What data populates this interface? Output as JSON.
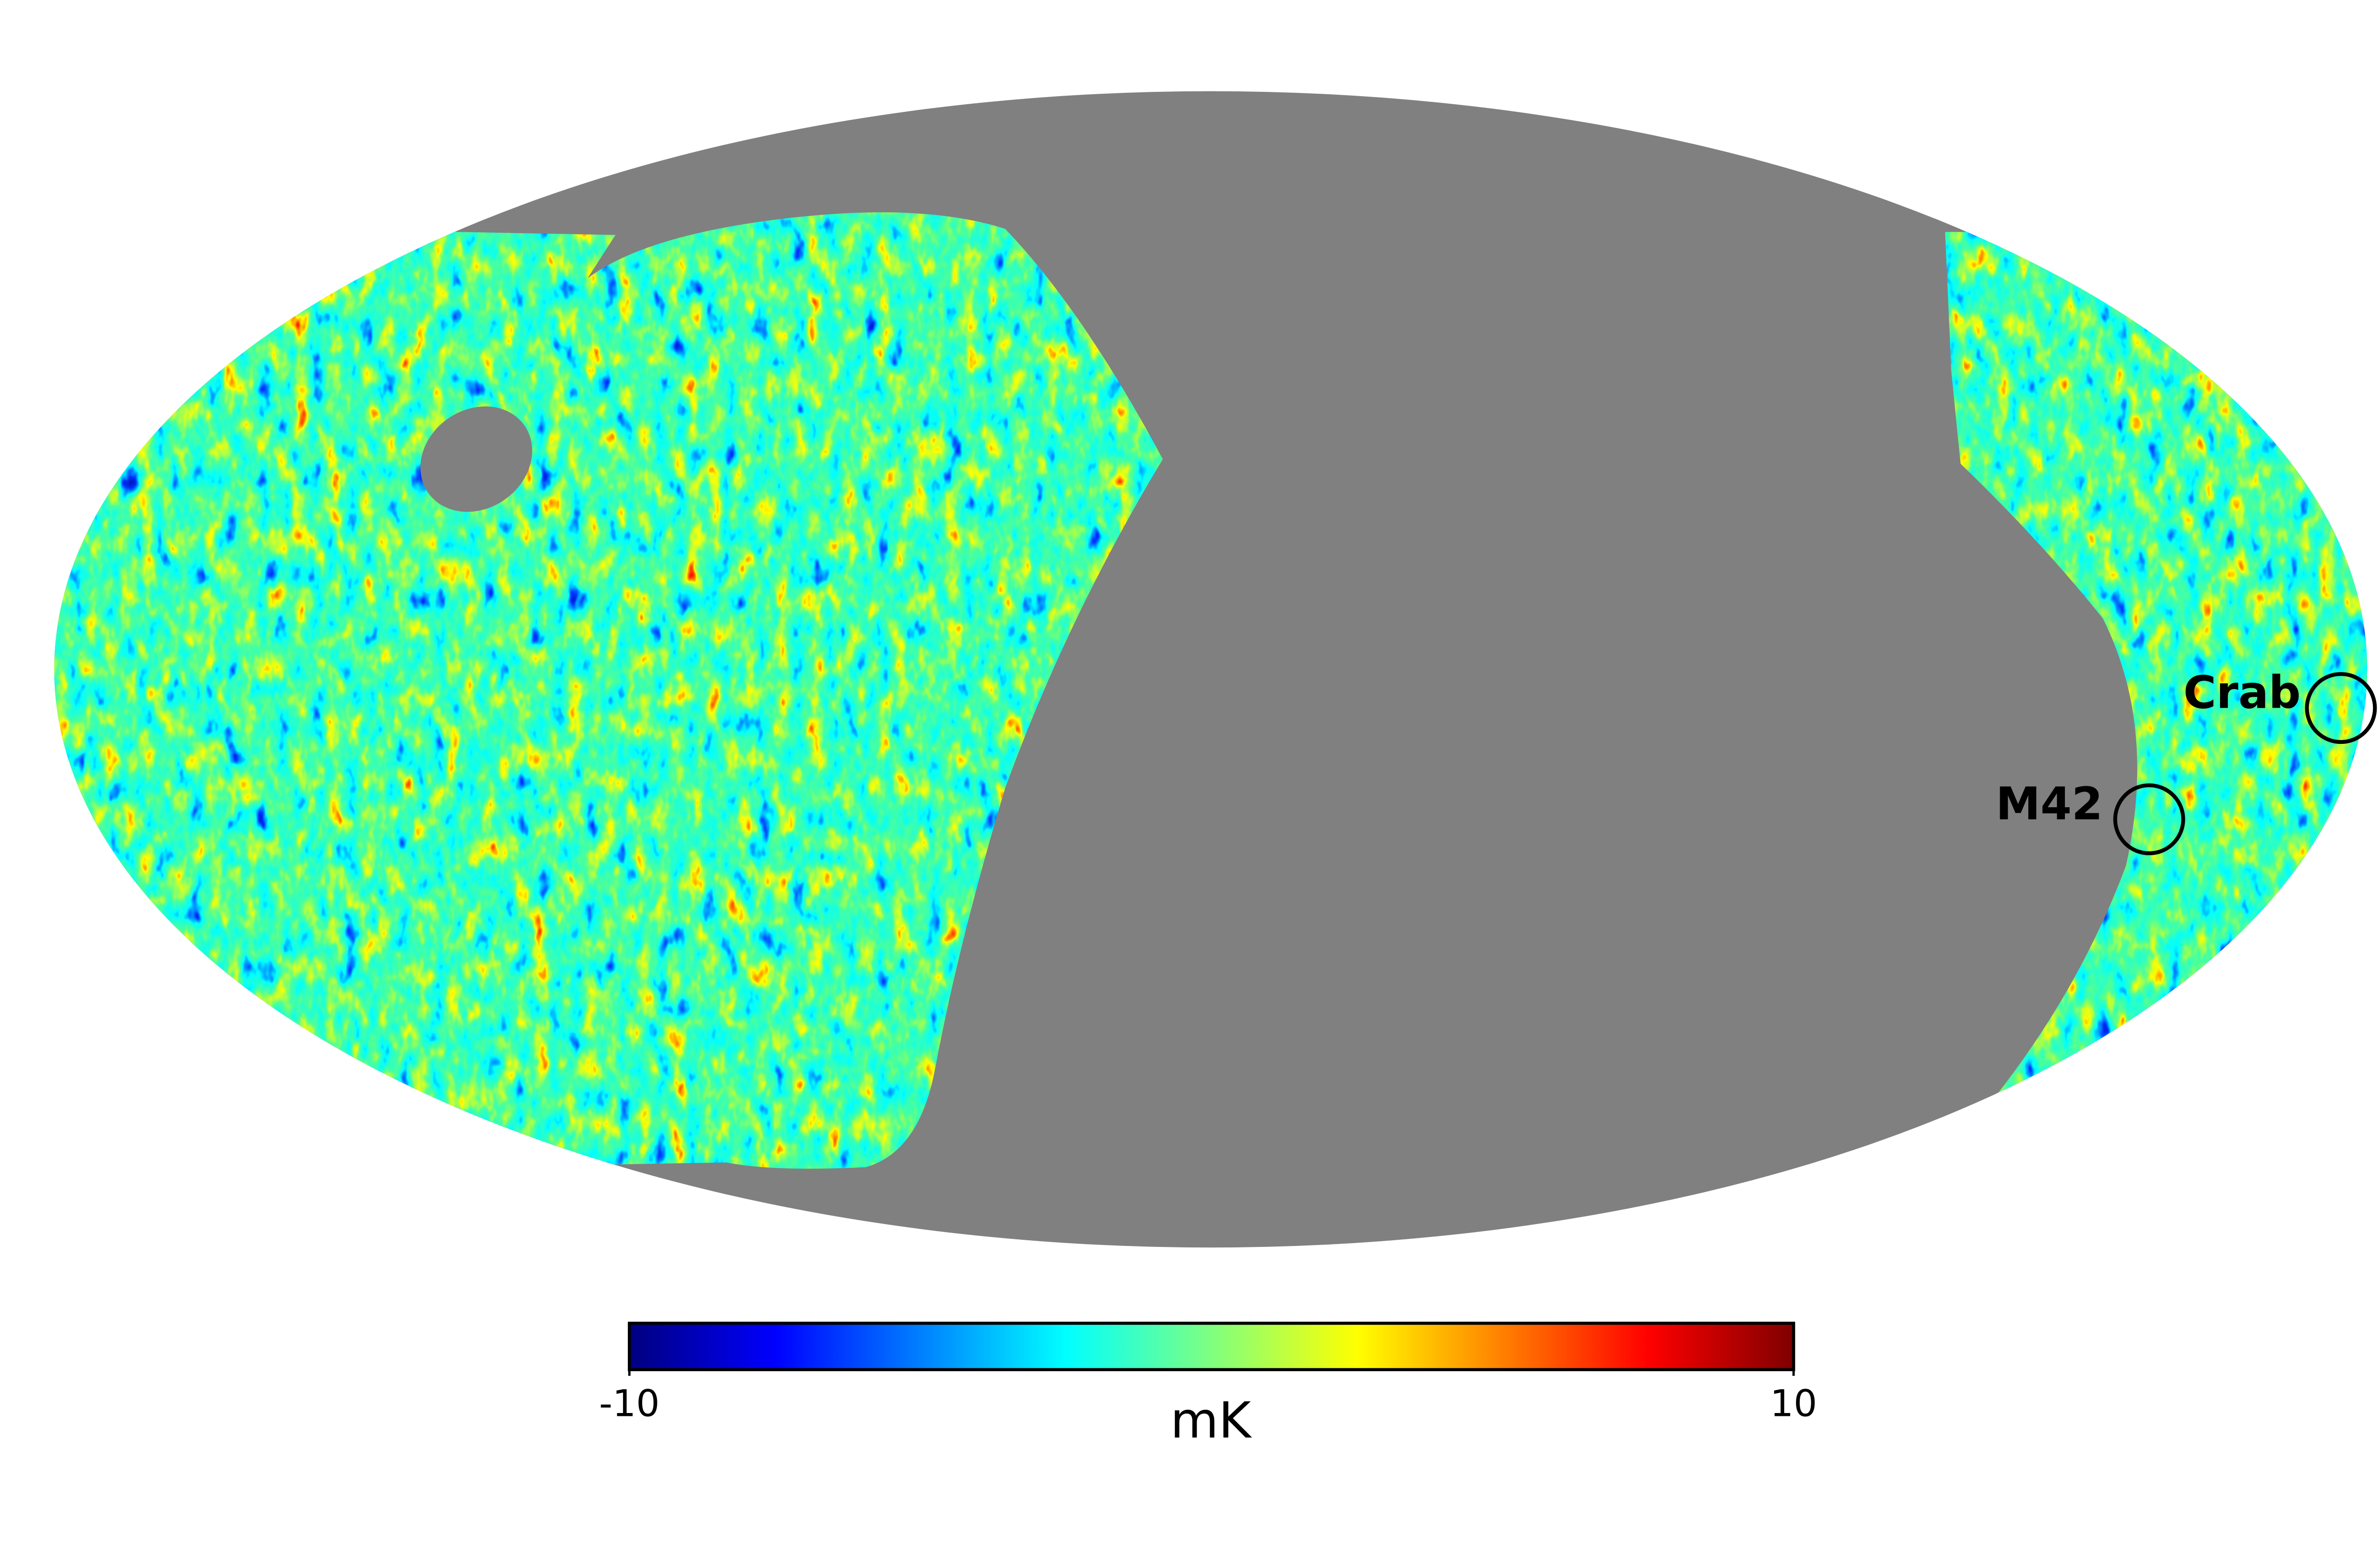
{
  "map": {
    "projection": "mollweide",
    "colorbar": {
      "label": "mK",
      "lim": [
        -10,
        10
      ],
      "ticks": [
        -10,
        10
      ]
    },
    "annotations": [
      {
        "label": "Crab"
      },
      {
        "label": "M42"
      }
    ]
  }
}
